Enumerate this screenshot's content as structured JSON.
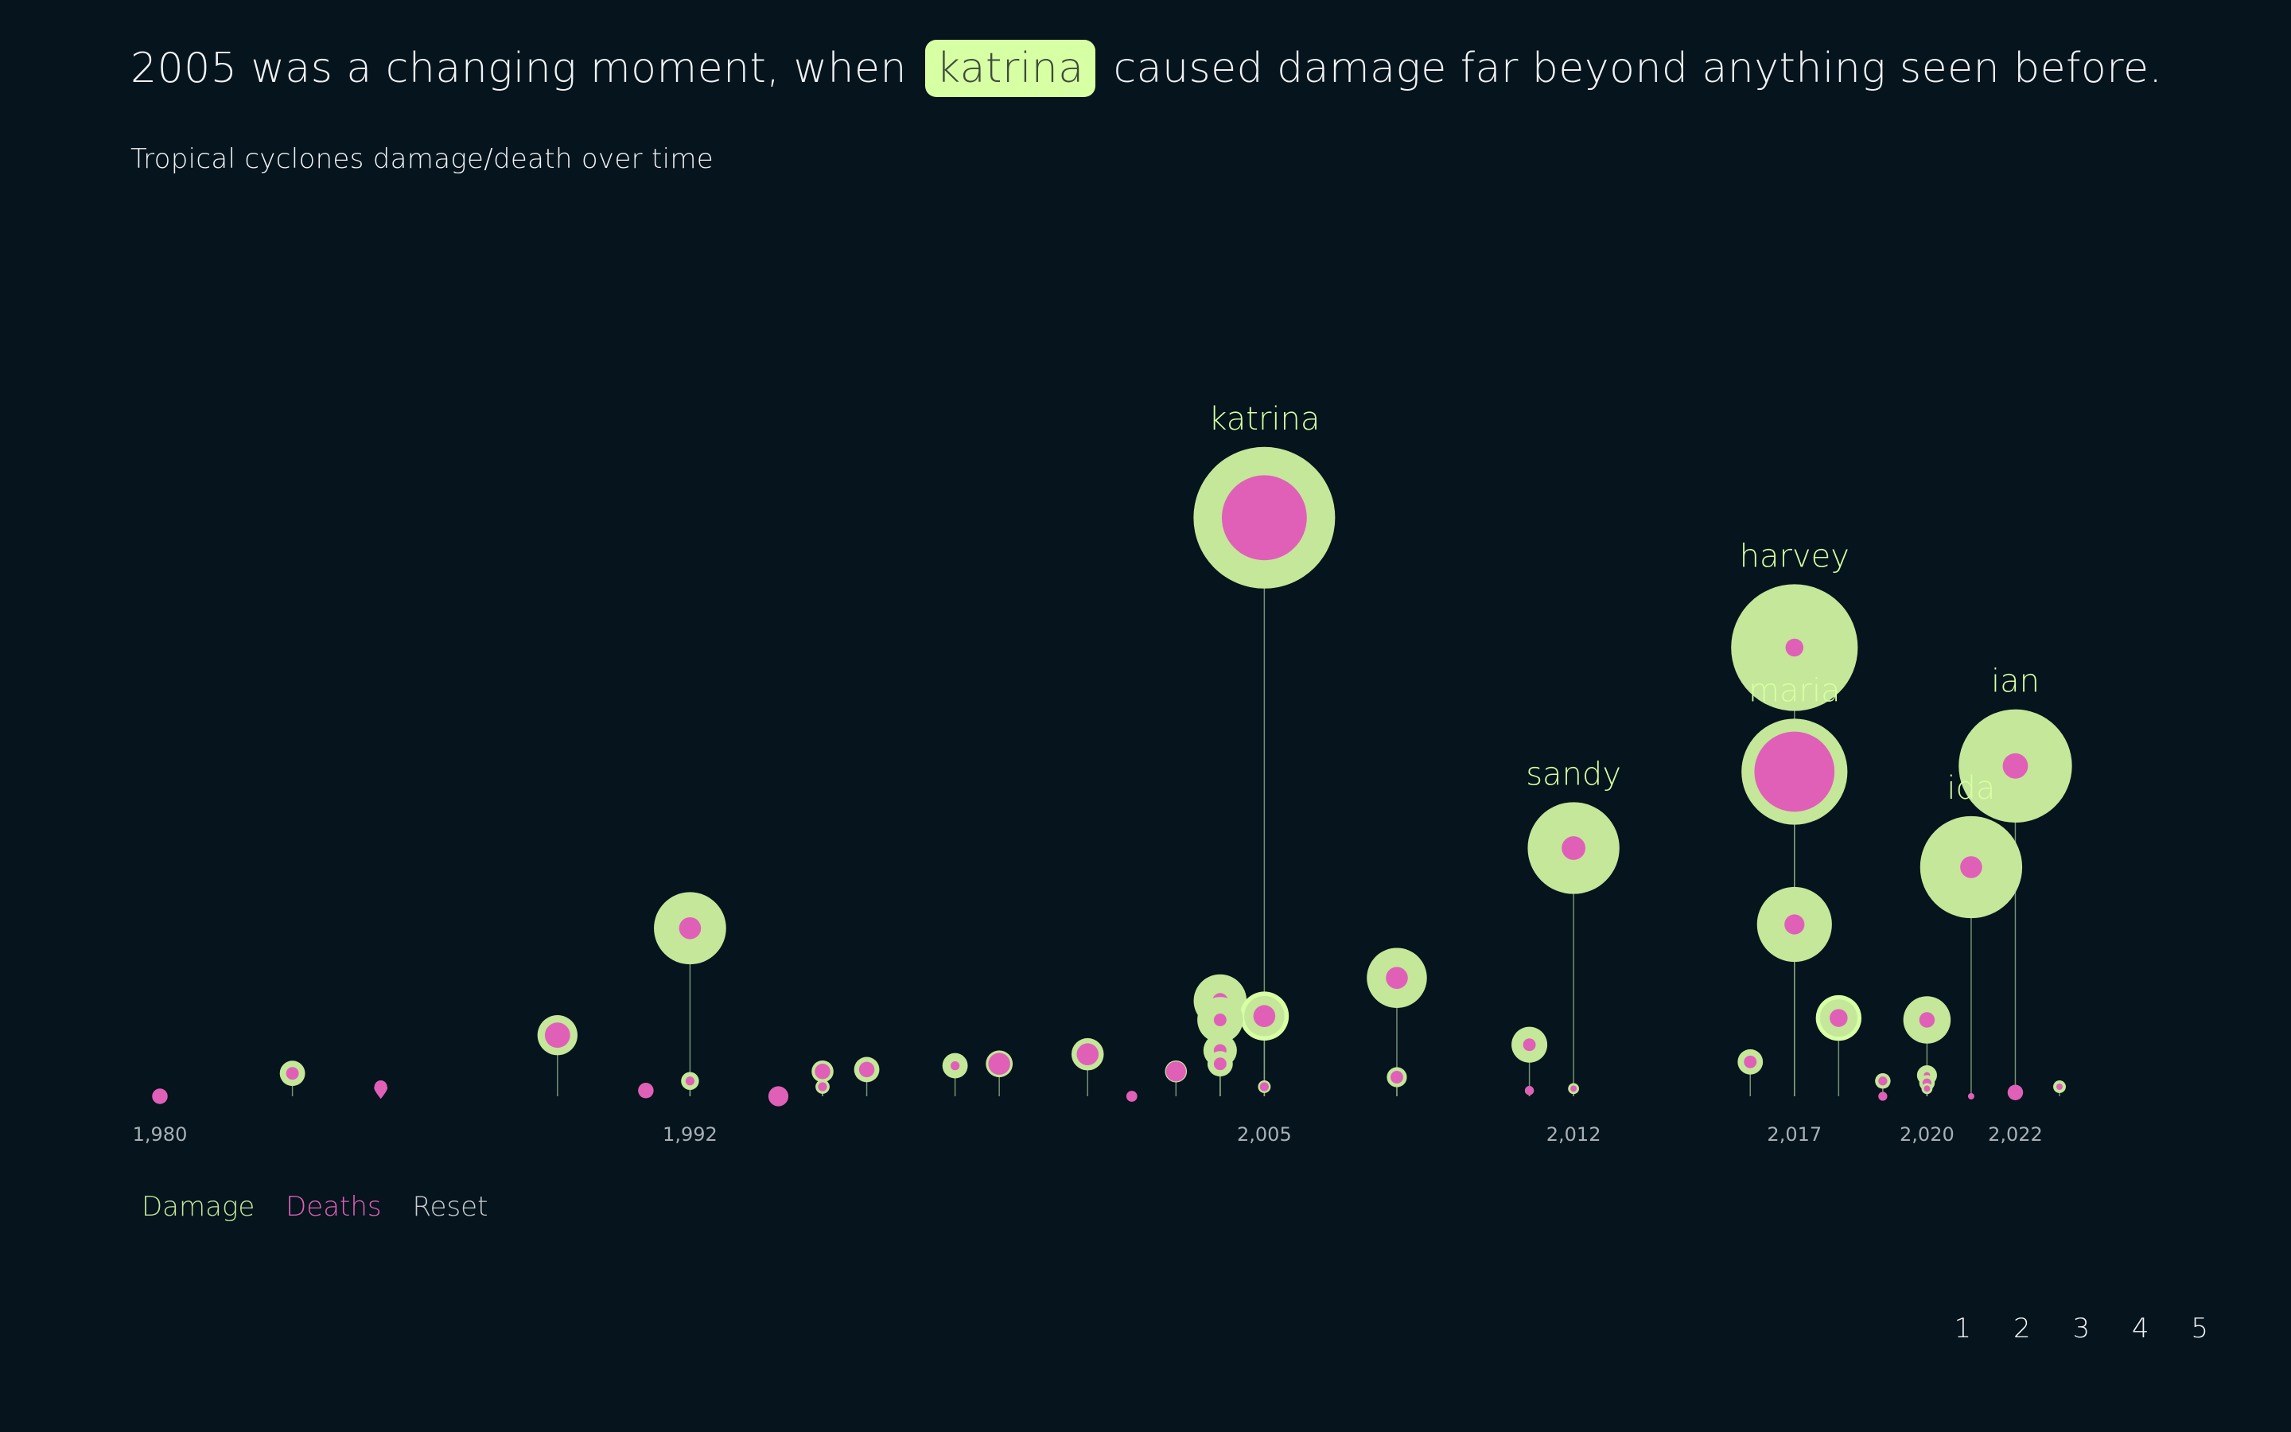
{
  "headline": {
    "before": "2005 was a changing moment, when",
    "highlight": "katrina",
    "after": "caused damage far beyond anything seen before."
  },
  "subtitle": "Tropical cyclones damage/death over time",
  "controls": {
    "damage": "Damage",
    "deaths": "Deaths",
    "reset": "Reset"
  },
  "pager": [
    "1",
    "2",
    "3",
    "4",
    "5"
  ],
  "colors": {
    "background": "#05141d",
    "damage": "#c4e79a",
    "damage_highlight": "#d7ffa4",
    "deaths": "#e060b8",
    "stem": "#8aa882",
    "axis_text": "#a7b0b5",
    "text": "#f0f3f4"
  },
  "chart_data": {
    "type": "scatter",
    "title": "Tropical cyclones damage/death over time",
    "x_ticks": [
      "1,980",
      "1,992",
      "2,005",
      "2,012",
      "2,017",
      "2,020",
      "2,022"
    ],
    "xlim": [
      1980,
      2023
    ],
    "series": [
      {
        "name": "Damage",
        "encoding": "outer circle area"
      },
      {
        "name": "Deaths",
        "encoding": "inner circle area"
      }
    ],
    "storms": [
      {
        "year": 1980,
        "damage": 0,
        "deaths": 0.3,
        "level": 0
      },
      {
        "year": 1983,
        "damage": 0.8,
        "deaths": 0.2,
        "level": 1.2
      },
      {
        "year": 1985,
        "damage": 0.4,
        "deaths": 0.7,
        "level": 0.4,
        "style": "teardrop"
      },
      {
        "year": 1989,
        "damage": 2.0,
        "deaths": 0.8,
        "level": 3.2
      },
      {
        "year": 1991,
        "damage": 0,
        "deaths": 0.3,
        "level": 0.3
      },
      {
        "year": 1992,
        "damage": 6.5,
        "deaths": 0.6,
        "level": 8.8
      },
      {
        "year": 1992,
        "damage": 0.4,
        "deaths": 0.1,
        "level": 0.8
      },
      {
        "year": 1994,
        "damage": 0,
        "deaths": 0.5,
        "level": 0
      },
      {
        "year": 1995,
        "damage": 0.6,
        "deaths": 0.3,
        "level": 1.3
      },
      {
        "year": 1995,
        "damage": 0.25,
        "deaths": 0.1,
        "level": 0.5
      },
      {
        "year": 1996,
        "damage": 0.8,
        "deaths": 0.3,
        "level": 1.4
      },
      {
        "year": 1998,
        "damage": 0.8,
        "deaths": 0.1,
        "level": 1.6
      },
      {
        "year": 1999,
        "damage": 0.9,
        "deaths": 0.6,
        "level": 1.7
      },
      {
        "year": 2001,
        "damage": 1.3,
        "deaths": 0.6,
        "level": 2.2
      },
      {
        "year": 2002,
        "damage": 0,
        "deaths": 0.15,
        "level": 0
      },
      {
        "year": 2003,
        "damage": 0.6,
        "deaths": 0.5,
        "level": 1.3
      },
      {
        "year": 2004,
        "damage": 3.5,
        "deaths": 0.3,
        "level": 5.0
      },
      {
        "year": 2004,
        "damage": 2.6,
        "deaths": 0.2,
        "level": 4.0
      },
      {
        "year": 2004,
        "damage": 1.4,
        "deaths": 0.2,
        "level": 2.4
      },
      {
        "year": 2004,
        "damage": 0.8,
        "deaths": 0.2,
        "level": 1.7
      },
      {
        "year": 2005,
        "name": "katrina",
        "damage": 25,
        "deaths": 9,
        "level": 30.3,
        "labeled": true
      },
      {
        "year": 2005,
        "damage": 3.0,
        "deaths": 0.6,
        "level": 4.2,
        "style": "bright"
      },
      {
        "year": 2005,
        "damage": 0.2,
        "deaths": 0.1,
        "level": 0.5
      },
      {
        "year": 2008,
        "damage": 4.5,
        "deaths": 0.6,
        "level": 6.2
      },
      {
        "year": 2008,
        "damage": 0.5,
        "deaths": 0.2,
        "level": 1.0
      },
      {
        "year": 2011,
        "damage": 1.6,
        "deaths": 0.2,
        "level": 2.7
      },
      {
        "year": 2011,
        "damage": 0.1,
        "deaths": 0.1,
        "level": 0.3
      },
      {
        "year": 2012,
        "name": "sandy",
        "damage": 10.5,
        "deaths": 0.7,
        "level": 13.0,
        "labeled": true
      },
      {
        "year": 2012,
        "damage": 0.15,
        "deaths": 0.05,
        "level": 0.4
      },
      {
        "year": 2016,
        "damage": 0.8,
        "deaths": 0.2,
        "level": 1.8
      },
      {
        "year": 2017,
        "name": "harvey",
        "damage": 20,
        "deaths": 0.4,
        "level": 23.5,
        "labeled": true
      },
      {
        "year": 2017,
        "name": "maria",
        "damage": 14,
        "deaths": 8,
        "level": 17.0,
        "labeled": true
      },
      {
        "year": 2017,
        "damage": 7.0,
        "deaths": 0.5,
        "level": 9.0
      },
      {
        "year": 2018,
        "damage": 2.6,
        "deaths": 0.4,
        "level": 4.1,
        "style": "bright"
      },
      {
        "year": 2019,
        "damage": 0.3,
        "deaths": 0.1,
        "level": 0.8
      },
      {
        "year": 2019,
        "damage": 0,
        "deaths": 0.1,
        "level": 0
      },
      {
        "year": 2020,
        "damage": 2.8,
        "deaths": 0.3,
        "level": 4.0
      },
      {
        "year": 2020,
        "damage": 0.5,
        "deaths": 0.05,
        "level": 1.1
      },
      {
        "year": 2020,
        "damage": 0.3,
        "deaths": 0.1,
        "level": 0.7
      },
      {
        "year": 2020,
        "damage": 0.15,
        "deaths": 0.05,
        "level": 0.4
      },
      {
        "year": 2021,
        "name": "ida",
        "damage": 13,
        "deaths": 0.6,
        "level": 12.0,
        "labeled": true
      },
      {
        "year": 2021,
        "damage": 0,
        "deaths": 0.05,
        "level": 0
      },
      {
        "year": 2022,
        "name": "ian",
        "damage": 16,
        "deaths": 0.8,
        "level": 17.3,
        "labeled": true
      },
      {
        "year": 2022,
        "damage": 0,
        "deaths": 0.3,
        "level": 0.2
      },
      {
        "year": 2023,
        "damage": 0.2,
        "deaths": 0.05,
        "level": 0.5
      }
    ]
  }
}
